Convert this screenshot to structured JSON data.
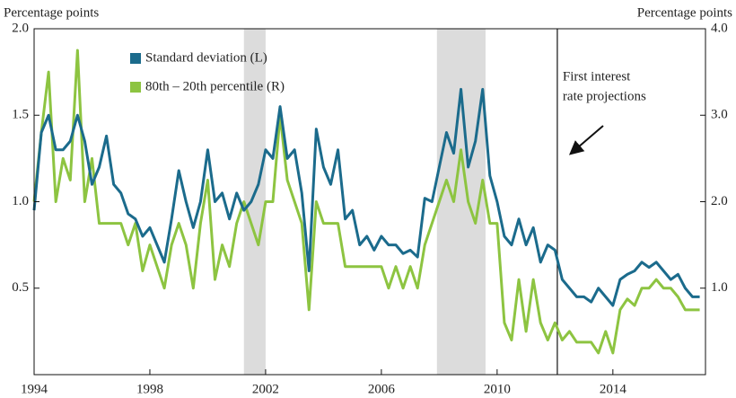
{
  "chart_data": {
    "type": "line",
    "y_label": "Percentage points",
    "y2_label": "Percentage points",
    "x": [
      1994.0,
      1994.25,
      1994.5,
      1994.75,
      1995.0,
      1995.25,
      1995.5,
      1995.75,
      1996.0,
      1996.25,
      1996.5,
      1996.75,
      1997.0,
      1997.25,
      1997.5,
      1997.75,
      1998.0,
      1998.25,
      1998.5,
      1998.75,
      1999.0,
      1999.25,
      1999.5,
      1999.75,
      2000.0,
      2000.25,
      2000.5,
      2000.75,
      2001.0,
      2001.25,
      2001.5,
      2001.75,
      2002.0,
      2002.25,
      2002.5,
      2002.75,
      2003.0,
      2003.25,
      2003.5,
      2003.75,
      2004.0,
      2004.25,
      2004.5,
      2004.75,
      2005.0,
      2005.25,
      2005.5,
      2005.75,
      2006.0,
      2006.25,
      2006.5,
      2006.75,
      2007.0,
      2007.25,
      2007.5,
      2007.75,
      2008.0,
      2008.25,
      2008.5,
      2008.75,
      2009.0,
      2009.25,
      2009.5,
      2009.75,
      2010.0,
      2010.25,
      2010.5,
      2010.75,
      2011.0,
      2011.25,
      2011.5,
      2011.75,
      2012.0,
      2012.25,
      2012.5,
      2012.75,
      2013.0,
      2013.25,
      2013.5,
      2013.75,
      2014.0,
      2014.25,
      2014.5,
      2014.75,
      2015.0,
      2015.25,
      2015.5,
      2015.75,
      2016.0,
      2016.25,
      2016.5,
      2016.75,
      2017.0
    ],
    "series": [
      {
        "name": "Standard deviation (L)",
        "color": "#1b6b8c",
        "axis": "y",
        "values": [
          0.95,
          1.4,
          1.5,
          1.3,
          1.3,
          1.35,
          1.5,
          1.35,
          1.1,
          1.2,
          1.38,
          1.1,
          1.05,
          0.93,
          0.9,
          0.8,
          0.85,
          0.75,
          0.65,
          0.9,
          1.18,
          1.0,
          0.85,
          1.0,
          1.3,
          1.0,
          1.05,
          0.9,
          1.05,
          0.95,
          1.0,
          1.1,
          1.3,
          1.25,
          1.55,
          1.25,
          1.3,
          1.05,
          0.6,
          1.42,
          1.2,
          1.1,
          1.3,
          0.9,
          0.95,
          0.75,
          0.8,
          0.72,
          0.8,
          0.75,
          0.75,
          0.7,
          0.72,
          0.68,
          1.02,
          1.0,
          1.2,
          1.4,
          1.28,
          1.65,
          1.2,
          1.35,
          1.65,
          1.15,
          1.0,
          0.8,
          0.75,
          0.9,
          0.75,
          0.85,
          0.65,
          0.75,
          0.72,
          0.55,
          0.5,
          0.45,
          0.45,
          0.42,
          0.5,
          0.45,
          0.4,
          0.55,
          0.58,
          0.6,
          0.65,
          0.62,
          0.65,
          0.6,
          0.55,
          0.58,
          0.5,
          0.45,
          0.45
        ]
      },
      {
        "name": "80th – 20th percentile (R)",
        "color": "#8dc441",
        "axis": "y2",
        "values": [
          2.0,
          2.8,
          3.5,
          2.0,
          2.5,
          2.25,
          3.75,
          2.0,
          2.5,
          1.75,
          1.75,
          1.75,
          1.75,
          1.5,
          1.75,
          1.2,
          1.5,
          1.25,
          1.0,
          1.5,
          1.75,
          1.5,
          1.0,
          1.75,
          2.25,
          1.1,
          1.5,
          1.25,
          1.75,
          2.0,
          1.75,
          1.5,
          2.0,
          2.0,
          3.0,
          2.25,
          2.0,
          1.75,
          0.75,
          2.0,
          1.75,
          1.75,
          1.75,
          1.25,
          1.25,
          1.25,
          1.25,
          1.25,
          1.25,
          1.0,
          1.25,
          1.0,
          1.25,
          1.0,
          1.5,
          1.75,
          2.0,
          2.25,
          2.0,
          2.6,
          2.0,
          1.75,
          2.25,
          1.75,
          1.75,
          0.6,
          0.4,
          1.1,
          0.5,
          1.1,
          0.6,
          0.4,
          0.6,
          0.4,
          0.5,
          0.375,
          0.375,
          0.375,
          0.25,
          0.5,
          0.25,
          0.75,
          0.875,
          0.8,
          1.0,
          1.0,
          1.1,
          1.0,
          1.0,
          0.9,
          0.75,
          0.75,
          0.75
        ]
      }
    ],
    "xlim": [
      1994,
      2017.2
    ],
    "xticks": [
      1994,
      1998,
      2002,
      2006,
      2010,
      2014
    ],
    "ylim": [
      0,
      2
    ],
    "yticks": [
      0.5,
      {
        "value": 1,
        "label": "1.0"
      },
      1.5,
      {
        "value": 2,
        "label": "2.0"
      }
    ],
    "y2lim": [
      0,
      4
    ],
    "y2ticks": [
      {
        "value": 1,
        "label": "1.0"
      },
      {
        "value": 2,
        "label": "2.0"
      },
      {
        "value": 3,
        "label": "3.0"
      },
      {
        "value": 4,
        "label": "4.0"
      }
    ],
    "shaded_regions": [
      [
        2001.25,
        2002.0
      ],
      [
        2007.92,
        2009.6
      ]
    ],
    "vline": 2012.08,
    "annotation": [
      "First interest",
      "rate projections"
    ]
  }
}
